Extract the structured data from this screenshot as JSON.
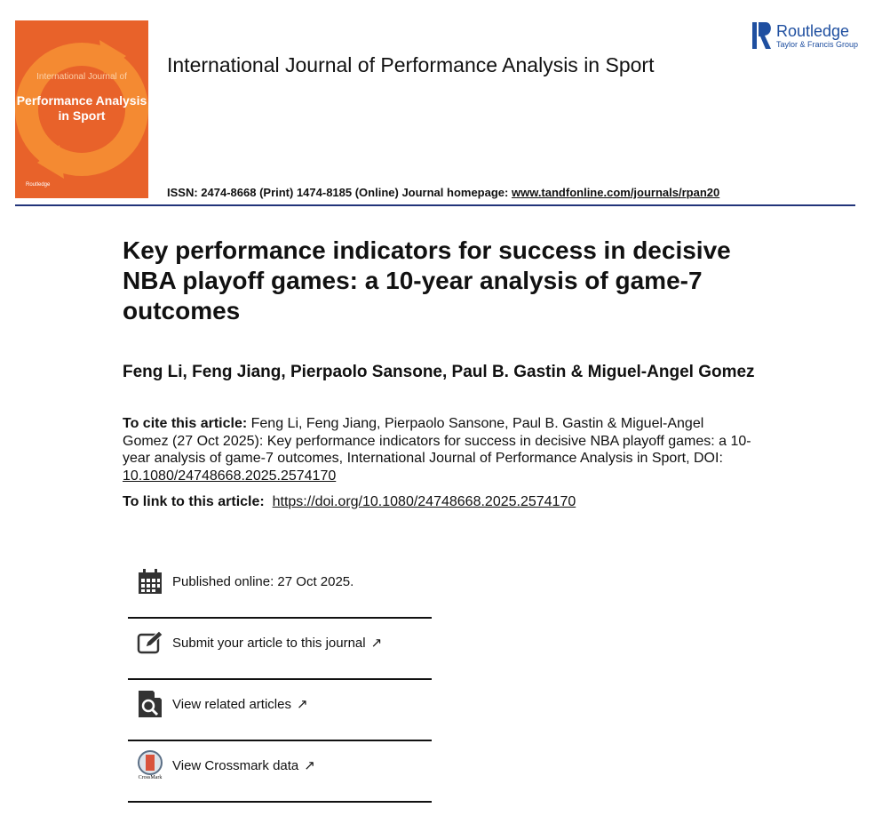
{
  "journal": {
    "title": "International Journal of Performance Analysis in Sport",
    "issn_text": "ISSN: 2474-8668 (Print) 1474-8185 (Online) Journal homepage: ",
    "homepage": "www.tandfonline.com/journals/rpan20",
    "cover": {
      "line1": "International Journal of",
      "line2": "Performance Analysis in Sport",
      "publisher": "Routledge",
      "color": "#e8622a"
    }
  },
  "publisher": {
    "name": "Routledge",
    "group": "Taylor & Francis Group",
    "vertical": "ROUTLEDGE",
    "color": "#1f4fa0"
  },
  "article": {
    "title": "Key performance indicators for success in decisive NBA playoff games: a 10-year analysis of game-7 outcomes",
    "authors": "Feng Li, Feng Jiang, Pierpaolo Sansone, Paul B. Gastin & Miguel-Angel Gomez",
    "cite_label": "To cite this article:",
    "cite_text": " Feng Li, Feng Jiang, Pierpaolo Sansone, Paul B. Gastin & Miguel-Angel Gomez (27 Oct 2025): Key performance indicators for success in decisive NBA playoff games: a 10-year analysis of game-7 outcomes, International Journal of Performance Analysis in Sport, DOI: ",
    "doi": "10.1080/24748668.2025.2574170",
    "link_label": "To link to this article:",
    "link_url": "https://doi.org/10.1080/24748668.2025.2574170"
  },
  "items": [
    {
      "label": "Published online: 27 Oct 2025.",
      "icon": "calendar-icon"
    },
    {
      "label": "Submit your article to this journal",
      "icon": "edit-icon"
    },
    {
      "label": "View related articles",
      "icon": "search-document-icon"
    },
    {
      "label": "View Crossmark data",
      "icon": "crossmark-icon",
      "icon_text": "CrossMark"
    }
  ]
}
